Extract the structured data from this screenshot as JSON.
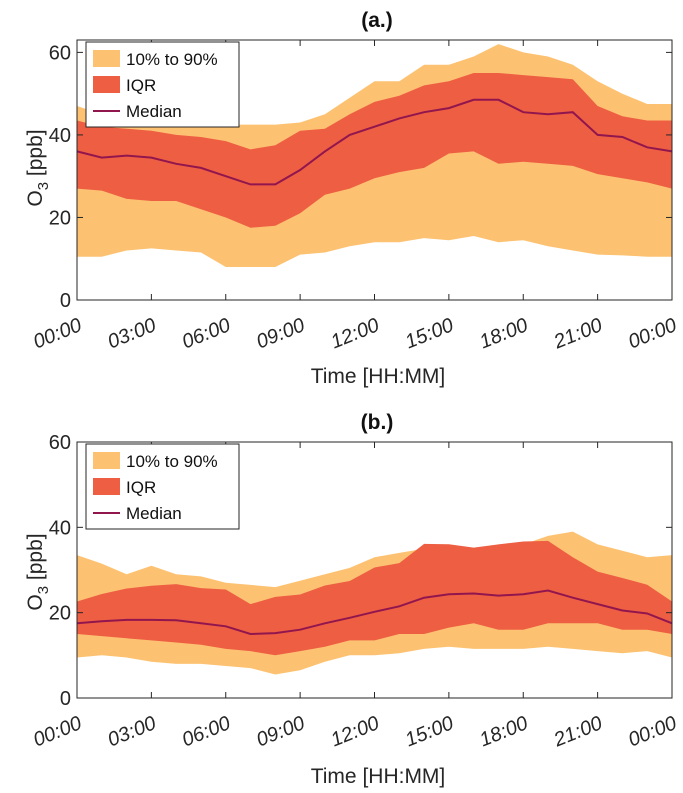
{
  "colors": {
    "band_10_90": "#fcc272",
    "band_iqr": "#ee5e43",
    "median": "#92164e",
    "axis": "#262626"
  },
  "chart_data": [
    {
      "type": "area",
      "title": "(a.)",
      "xlabel": "Time [HH:MM]",
      "ylabel_base": "O",
      "ylabel_sub": "3",
      "ylabel_rest": " [ppb]",
      "ylim": [
        0,
        63
      ],
      "xlim": [
        0,
        24
      ],
      "x_ticks": [
        0,
        3,
        6,
        9,
        12,
        15,
        18,
        21,
        24
      ],
      "x_tick_labels": [
        "00:00",
        "03:00",
        "06:00",
        "09:00",
        "12:00",
        "15:00",
        "18:00",
        "21:00",
        "00:00"
      ],
      "y_ticks": [
        0,
        20,
        40,
        60
      ],
      "y_tick_labels": [
        "0",
        "20",
        "40",
        "60"
      ],
      "legend": {
        "position": "top-left",
        "entries": [
          "10% to 90%",
          "IQR",
          "Median"
        ]
      },
      "x": [
        0,
        1,
        2,
        3,
        4,
        5,
        6,
        7,
        8,
        9,
        10,
        11,
        12,
        13,
        14,
        15,
        16,
        17,
        18,
        19,
        20,
        21,
        22,
        23,
        24
      ],
      "series": [
        {
          "name": "10% to 90%",
          "role": "band",
          "low": [
            10.5,
            10.5,
            12,
            12.5,
            12,
            11.5,
            8,
            8,
            8,
            11,
            11.5,
            13,
            14,
            14,
            15,
            14.5,
            15.5,
            14,
            14.5,
            13,
            12,
            11,
            10.8,
            10.5,
            10.5
          ],
          "high": [
            47,
            45,
            44.5,
            44,
            43.5,
            43,
            42.5,
            42.5,
            42.5,
            43,
            45,
            49,
            53,
            53,
            57,
            57,
            59,
            62,
            60,
            59,
            57,
            53,
            50,
            47.5,
            47.5
          ]
        },
        {
          "name": "IQR",
          "role": "band",
          "low": [
            27,
            26.5,
            24.5,
            24,
            24,
            22,
            20,
            17.5,
            18,
            21,
            25.5,
            27,
            29.5,
            31,
            32,
            35.5,
            36,
            33,
            33.5,
            33,
            32.5,
            30.5,
            29.5,
            28.5,
            27
          ],
          "high": [
            43.5,
            42,
            41.5,
            41,
            40,
            39.5,
            38.5,
            36.5,
            37.5,
            41,
            41.5,
            45,
            48,
            49.5,
            52,
            53,
            55,
            55,
            54.5,
            54,
            53.5,
            47,
            44.5,
            43.5,
            43.5
          ]
        },
        {
          "name": "Median",
          "role": "line",
          "values": [
            36,
            34.5,
            35,
            34.5,
            33,
            32,
            30,
            28,
            28,
            31.5,
            36,
            40,
            42,
            44,
            45.5,
            46.5,
            48.5,
            48.5,
            45.5,
            45,
            45.5,
            40,
            39.5,
            37,
            36
          ]
        }
      ]
    },
    {
      "type": "area",
      "title": "(b.)",
      "xlabel": "Time [HH:MM]",
      "ylabel_base": "O",
      "ylabel_sub": "3",
      "ylabel_rest": " [ppb]",
      "ylim": [
        0,
        60
      ],
      "xlim": [
        0,
        24
      ],
      "x_ticks": [
        0,
        3,
        6,
        9,
        12,
        15,
        18,
        21,
        24
      ],
      "x_tick_labels": [
        "00:00",
        "03:00",
        "06:00",
        "09:00",
        "12:00",
        "15:00",
        "18:00",
        "21:00",
        "00:00"
      ],
      "y_ticks": [
        0,
        20,
        40,
        60
      ],
      "y_tick_labels": [
        "0",
        "20",
        "40",
        "60"
      ],
      "legend": {
        "position": "top-left",
        "entries": [
          "10% to 90%",
          "IQR",
          "Median"
        ]
      },
      "x": [
        0,
        1,
        2,
        3,
        4,
        5,
        6,
        7,
        8,
        9,
        10,
        11,
        12,
        13,
        14,
        15,
        16,
        17,
        18,
        19,
        20,
        21,
        22,
        23,
        24
      ],
      "series": [
        {
          "name": "10% to 90%",
          "role": "band",
          "low": [
            9.5,
            10,
            9.5,
            8.5,
            8,
            8,
            7.5,
            7,
            5.5,
            6.5,
            8.5,
            10,
            10,
            10.5,
            11.5,
            12,
            11.5,
            11.5,
            11.5,
            12,
            11.5,
            11,
            10.5,
            11,
            9.5
          ],
          "high": [
            33.5,
            31.5,
            29,
            31,
            29,
            28.5,
            27,
            26.5,
            26,
            27.5,
            29,
            30.5,
            33,
            34,
            35,
            35,
            34.5,
            36,
            36,
            38,
            39,
            36,
            34.5,
            33,
            33.5
          ]
        },
        {
          "name": "IQR",
          "role": "band",
          "low": [
            15,
            14.5,
            14,
            13.5,
            13,
            12.5,
            11.5,
            11,
            10,
            11,
            12,
            13.5,
            13.5,
            15,
            15,
            16.5,
            17.5,
            16,
            16,
            17.5,
            17.5,
            17.5,
            16,
            16,
            15
          ]
        },
        {
          "name": "Median",
          "role": "line",
          "values": [
            17.5,
            18,
            18.3,
            18.3,
            18.2,
            17.5,
            16.8,
            15,
            15.2,
            16,
            17.5,
            18.8,
            20.2,
            21.5,
            23.5,
            24.3,
            24.5,
            24,
            24.3,
            25.2,
            23.5,
            22,
            20.5,
            19.8,
            17.5
          ]
        }
      ]
    }
  ]
}
